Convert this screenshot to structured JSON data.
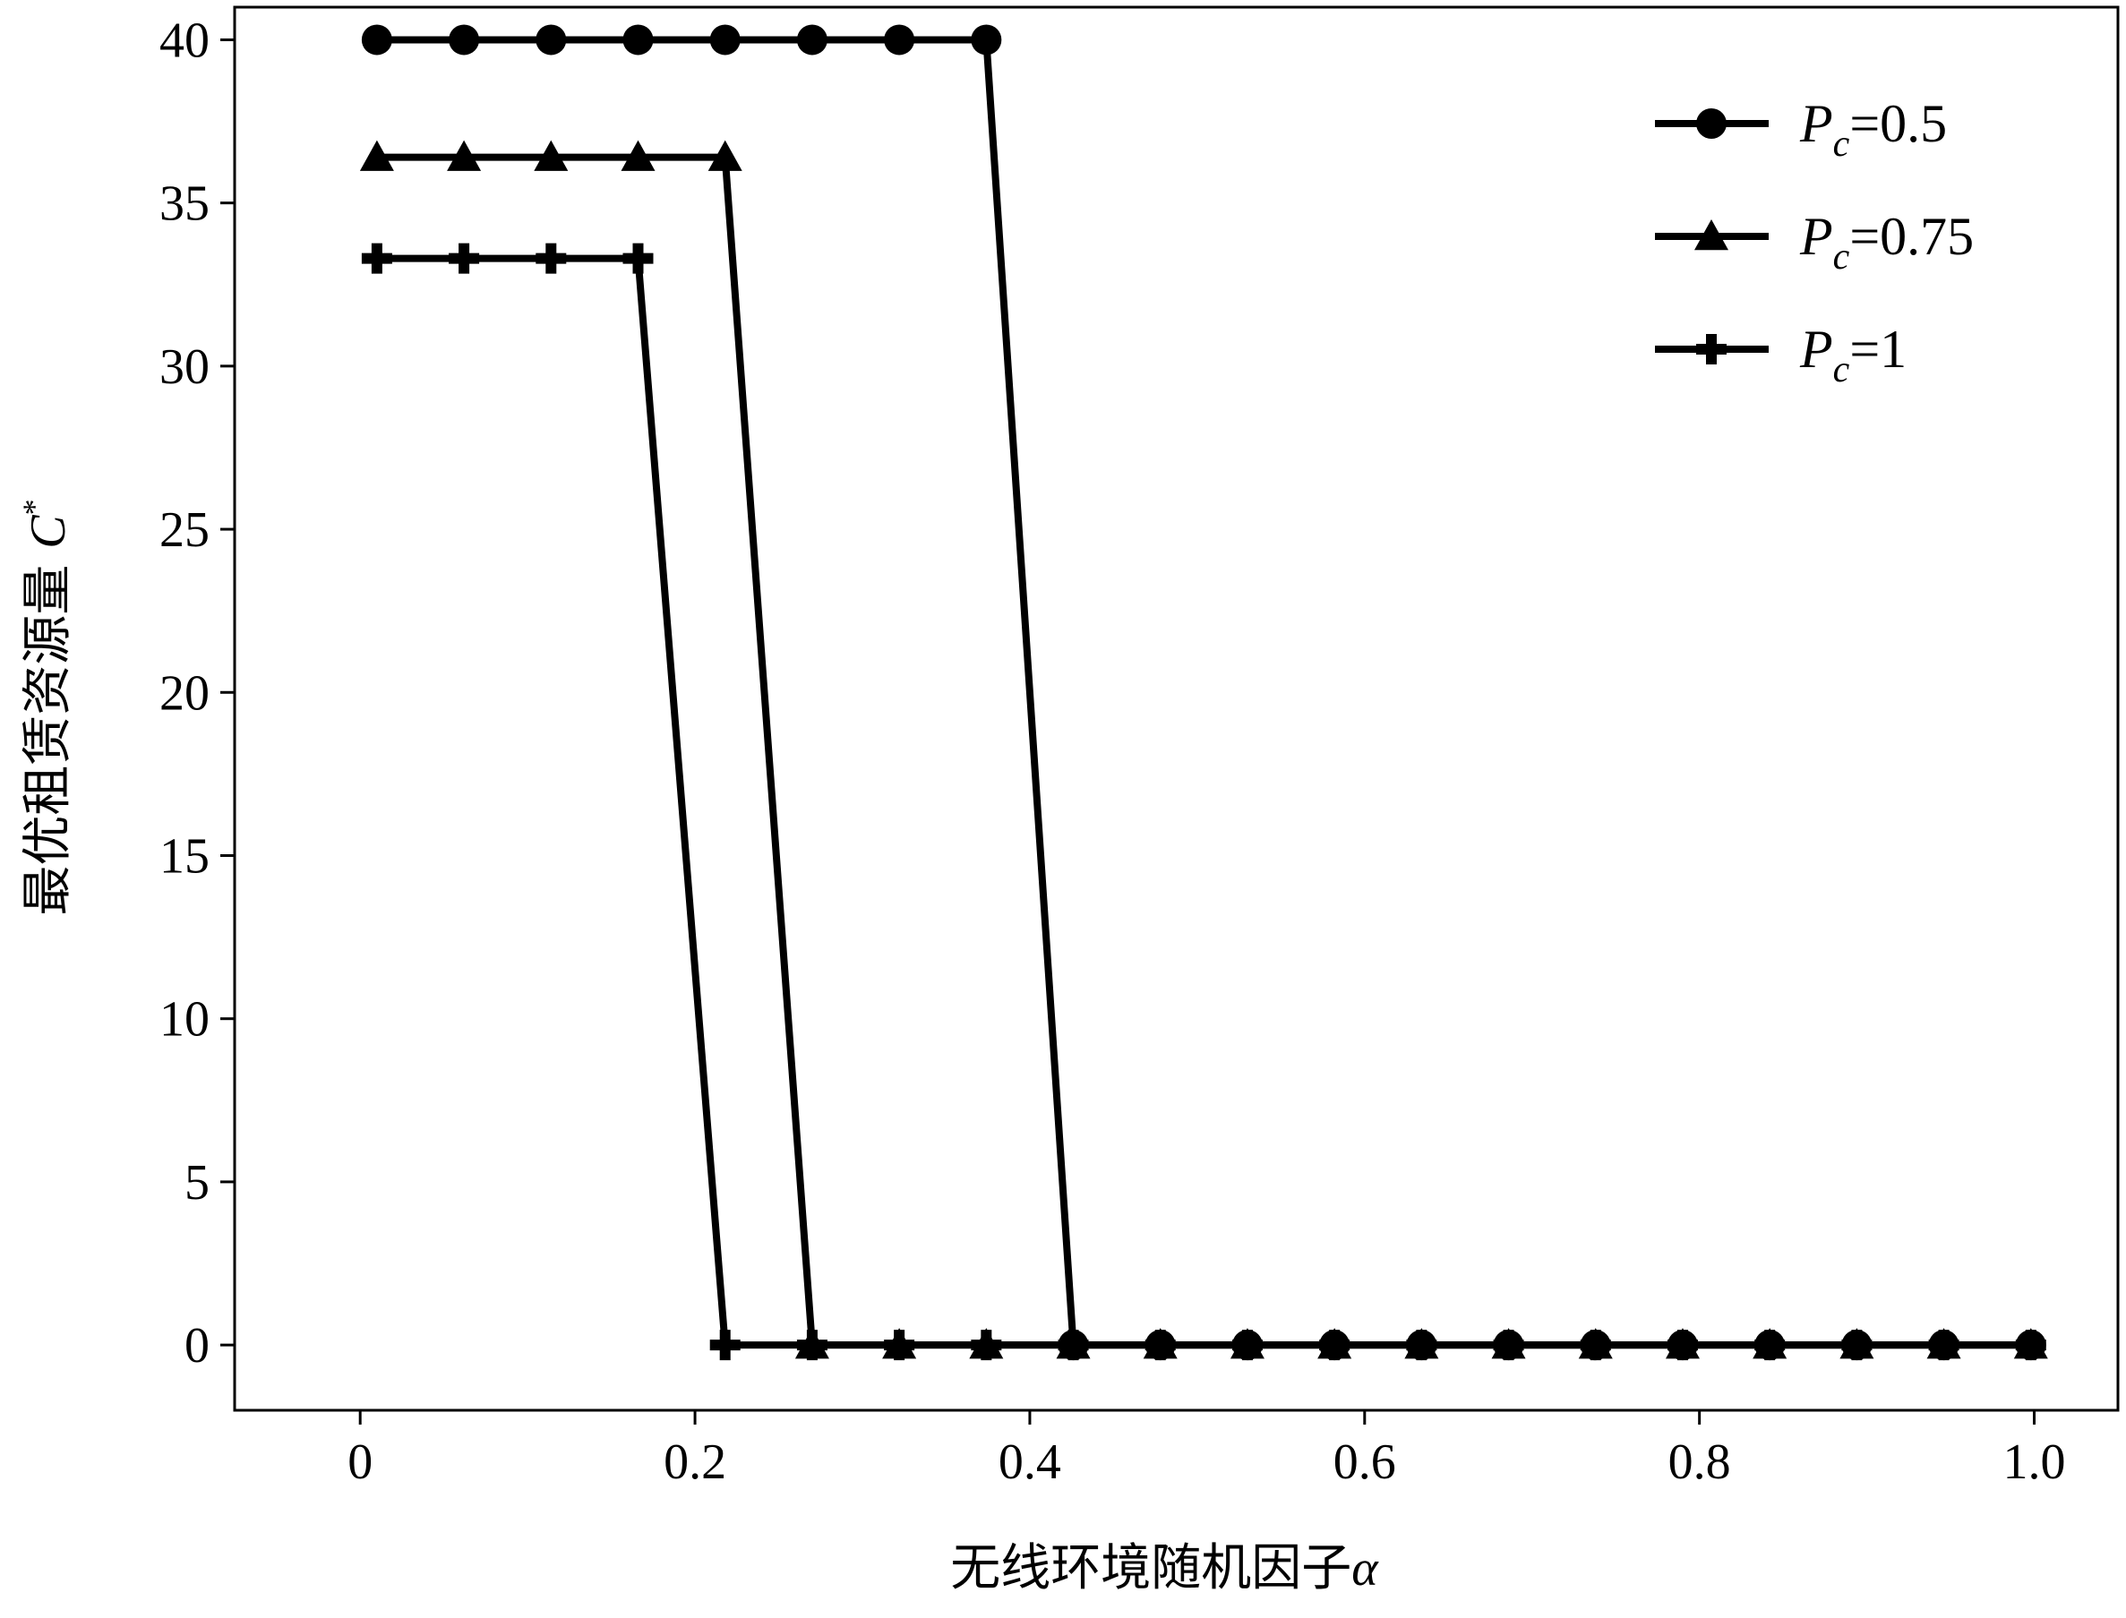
{
  "chart_data": {
    "type": "line",
    "xlabel": "无线环境随机因子",
    "xlabel_symbol": "α",
    "ylabel": "最优租赁资源量",
    "ylabel_symbol": "C",
    "ylabel_superscript": "*",
    "xlim": [
      -0.075,
      1.05
    ],
    "ylim": [
      -2,
      41
    ],
    "x_ticks": [
      0,
      0.2,
      0.4,
      0.6,
      0.8,
      1.0
    ],
    "x_tick_labels": [
      "0",
      "0.2",
      "0.4",
      "0.6",
      "0.8",
      "1.0"
    ],
    "y_ticks": [
      0,
      5,
      10,
      15,
      20,
      25,
      30,
      35,
      40
    ],
    "y_tick_labels": [
      "0",
      "5",
      "10",
      "15",
      "20",
      "25",
      "30",
      "35",
      "40"
    ],
    "grid": false,
    "legend_position": "top-right",
    "line_color": "#000000",
    "x": [
      0.01,
      0.062,
      0.114,
      0.166,
      0.218,
      0.27,
      0.322,
      0.374,
      0.426,
      0.478,
      0.53,
      0.582,
      0.634,
      0.686,
      0.738,
      0.79,
      0.842,
      0.894,
      0.946,
      0.998
    ],
    "series": [
      {
        "name": "P_c=0.5",
        "legend_italic": "P",
        "legend_sub": "c",
        "legend_rest": "=0.5",
        "marker": "circle",
        "values": [
          40,
          40,
          40,
          40,
          40,
          40,
          40,
          40,
          0,
          0,
          0,
          0,
          0,
          0,
          0,
          0,
          0,
          0,
          0,
          0
        ]
      },
      {
        "name": "P_c=0.75",
        "legend_italic": "P",
        "legend_sub": "c",
        "legend_rest": "=0.75",
        "marker": "triangle",
        "values": [
          36.4,
          36.4,
          36.4,
          36.4,
          36.4,
          0,
          0,
          0,
          0,
          0,
          0,
          0,
          0,
          0,
          0,
          0,
          0,
          0,
          0,
          0
        ]
      },
      {
        "name": "P_c=1",
        "legend_italic": "P",
        "legend_sub": "c",
        "legend_rest": "=1",
        "marker": "plus",
        "values": [
          33.3,
          33.3,
          33.3,
          33.3,
          0,
          0,
          0,
          0,
          0,
          0,
          0,
          0,
          0,
          0,
          0,
          0,
          0,
          0,
          0,
          0
        ]
      }
    ]
  }
}
